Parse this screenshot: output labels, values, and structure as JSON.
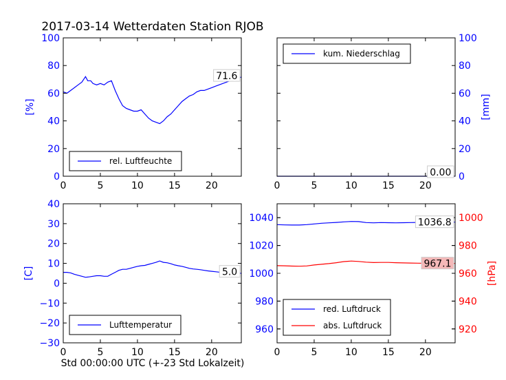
{
  "title": "2017-03-14 Wetterdaten Station RJOB",
  "xlabel": "Std 00:00:00 UTC (+-23 Std Lokalzeit)",
  "colors": {
    "blue": "#0000ff",
    "red": "#ff0000",
    "redbox": "#f4b8b8"
  },
  "chart_data": [
    {
      "type": "line",
      "id": "humidity",
      "ylabel": "[%]",
      "ylim": [
        0,
        100
      ],
      "yticks": [
        "0",
        "20",
        "40",
        "60",
        "80",
        "100"
      ],
      "xlim": [
        0,
        24
      ],
      "xticks": [
        "0",
        "5",
        "10",
        "15",
        "20"
      ],
      "legend_position": "lower-center",
      "last_value_label": "71.6",
      "series": [
        {
          "name": "rel. Luftfeuchte",
          "color": "#0000ff",
          "x": [
            0,
            0.5,
            1,
            1.5,
            2,
            2.5,
            3,
            3.3,
            3.7,
            4,
            4.5,
            5,
            5.5,
            6,
            6.5,
            7,
            7.5,
            8,
            8.5,
            9,
            9.5,
            10,
            10.5,
            11,
            11.5,
            12,
            12.5,
            13,
            13.5,
            14,
            14.5,
            15,
            15.5,
            16,
            16.5,
            17,
            17.5,
            18,
            18.5,
            19,
            19.5,
            20,
            20.5,
            21,
            21.5,
            22,
            22.5,
            23,
            23.5,
            24
          ],
          "y": [
            61,
            60,
            62,
            64,
            66,
            68,
            72,
            69,
            69,
            67,
            66,
            67,
            66,
            68,
            69,
            62,
            56,
            51,
            49,
            48,
            47,
            47,
            48,
            45,
            42,
            40,
            39,
            38,
            40,
            43,
            45,
            48,
            51,
            54,
            56,
            58,
            59,
            61,
            62,
            62,
            63,
            64,
            65,
            66,
            67,
            68,
            69,
            70,
            71,
            71.6
          ]
        }
      ]
    },
    {
      "type": "line",
      "id": "precip",
      "ylabel": "[mm]",
      "ylim": [
        0,
        100
      ],
      "yticks": [
        "0",
        "20",
        "40",
        "60",
        "80",
        "100"
      ],
      "xlim": [
        0,
        24
      ],
      "xticks": [
        "0",
        "5",
        "10",
        "15",
        "20"
      ],
      "legend_position": "upper-left",
      "last_value_label": "0.00",
      "series": [
        {
          "name": "kum. Niederschlag",
          "color": "#0000ff",
          "x": [
            0,
            24
          ],
          "y": [
            0,
            0
          ]
        }
      ]
    },
    {
      "type": "line",
      "id": "temp",
      "ylabel": "[C]",
      "ylim": [
        -30,
        40
      ],
      "yticks": [
        "−30",
        "−20",
        "−10",
        "0",
        "10",
        "20",
        "30",
        "40"
      ],
      "xlim": [
        0,
        24
      ],
      "xticks": [
        "0",
        "5",
        "10",
        "15",
        "20"
      ],
      "legend_position": "lower-center",
      "last_value_label": "5.0",
      "series": [
        {
          "name": "Lufttemperatur",
          "color": "#0000ff",
          "x": [
            0,
            0.5,
            1,
            1.5,
            2,
            2.5,
            3,
            3.5,
            4,
            4.5,
            5,
            5.5,
            6,
            6.5,
            7,
            7.5,
            8,
            8.5,
            9,
            9.5,
            10,
            10.5,
            11,
            11.5,
            12,
            12.5,
            13,
            13.5,
            14,
            14.5,
            15,
            15.5,
            16,
            16.5,
            17,
            17.5,
            18,
            18.5,
            19,
            19.5,
            20,
            20.5,
            21,
            21.5,
            22,
            22.5,
            23,
            23.5,
            24
          ],
          "y": [
            5.5,
            5.5,
            5.2,
            4.5,
            4,
            3.5,
            3,
            3.2,
            3.5,
            3.8,
            3.8,
            3.5,
            3.5,
            4.5,
            5.5,
            6.5,
            7,
            7,
            7.5,
            8,
            8.5,
            8.8,
            9,
            9.5,
            10,
            10.5,
            11.2,
            10.5,
            10.3,
            9.8,
            9.2,
            8.8,
            8.5,
            8,
            7.5,
            7.2,
            7,
            6.8,
            6.5,
            6.2,
            6,
            5.8,
            5.6,
            5.5,
            5.3,
            5.2,
            5.1,
            5,
            5
          ]
        }
      ]
    },
    {
      "type": "line",
      "id": "pressure",
      "ylabel_right": "[hPa]",
      "ylim_left": [
        950,
        1050
      ],
      "yticks_left": [
        "960",
        "980",
        "1000",
        "1020",
        "1040"
      ],
      "ylim_right": [
        910,
        1010
      ],
      "yticks_right": [
        "920",
        "940",
        "960",
        "980",
        "1000"
      ],
      "xlim": [
        0,
        24
      ],
      "xticks": [
        "0",
        "5",
        "10",
        "15",
        "20"
      ],
      "legend_position": "lower-left",
      "last_value_label_left": "1036.8",
      "last_value_label_right": "967.1",
      "series": [
        {
          "name": "red. Luftdruck",
          "color": "#0000ff",
          "axis": "left",
          "x": [
            0,
            1,
            2,
            3,
            4,
            5,
            6,
            7,
            8,
            9,
            10,
            11,
            12,
            13,
            14,
            15,
            16,
            17,
            18,
            19,
            20,
            21,
            22,
            23,
            24
          ],
          "y": [
            1035,
            1034.8,
            1034.7,
            1034.7,
            1035,
            1035.5,
            1036,
            1036.3,
            1036.6,
            1037,
            1037.3,
            1037.2,
            1036.5,
            1036.3,
            1036.5,
            1036.4,
            1036.3,
            1036.4,
            1036.5,
            1036.6,
            1036.6,
            1036.7,
            1036.8,
            1036.8,
            1036.8
          ]
        },
        {
          "name": "abs. Luftdruck",
          "color": "#ff0000",
          "axis": "right",
          "x": [
            0,
            1,
            2,
            3,
            4,
            5,
            6,
            7,
            8,
            9,
            10,
            11,
            12,
            13,
            14,
            15,
            16,
            17,
            18,
            19,
            20,
            21,
            22,
            23,
            24
          ],
          "y": [
            965.5,
            965.4,
            965.2,
            965.1,
            965.3,
            966,
            966.5,
            967,
            967.6,
            968.4,
            968.8,
            968.5,
            968,
            967.7,
            967.8,
            967.8,
            967.6,
            967.5,
            967.4,
            967.3,
            967.2,
            967.1,
            967.1,
            967.1,
            967.1
          ]
        }
      ]
    }
  ]
}
